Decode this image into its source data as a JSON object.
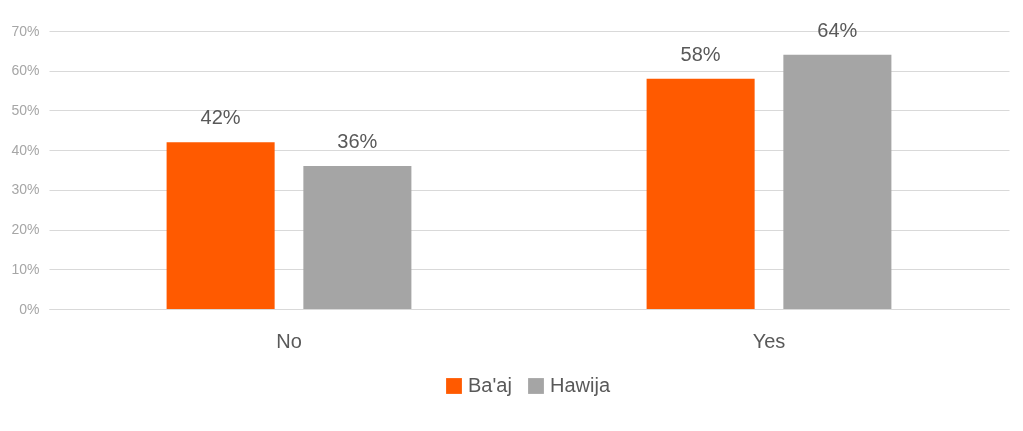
{
  "chart_data": {
    "type": "bar",
    "categories": [
      "No",
      "Yes"
    ],
    "series": [
      {
        "name": "Ba'aj",
        "color": "#ff5a00",
        "values": [
          42,
          58
        ],
        "value_labels": [
          "42%",
          "58%"
        ]
      },
      {
        "name": "Hawija",
        "color": "#a5a5a5",
        "values": [
          36,
          64
        ],
        "value_labels": [
          "36%",
          "64%"
        ]
      }
    ],
    "ylim": [
      0,
      70
    ],
    "yticks": [
      {
        "value": 0,
        "label": "0%"
      },
      {
        "value": 10,
        "label": "10%"
      },
      {
        "value": 20,
        "label": "20%"
      },
      {
        "value": 30,
        "label": "30%"
      },
      {
        "value": 40,
        "label": "40%"
      },
      {
        "value": 50,
        "label": "50%"
      },
      {
        "value": 60,
        "label": "60%"
      },
      {
        "value": 70,
        "label": "70%"
      }
    ],
    "grid": "y",
    "legend": "bottom"
  }
}
